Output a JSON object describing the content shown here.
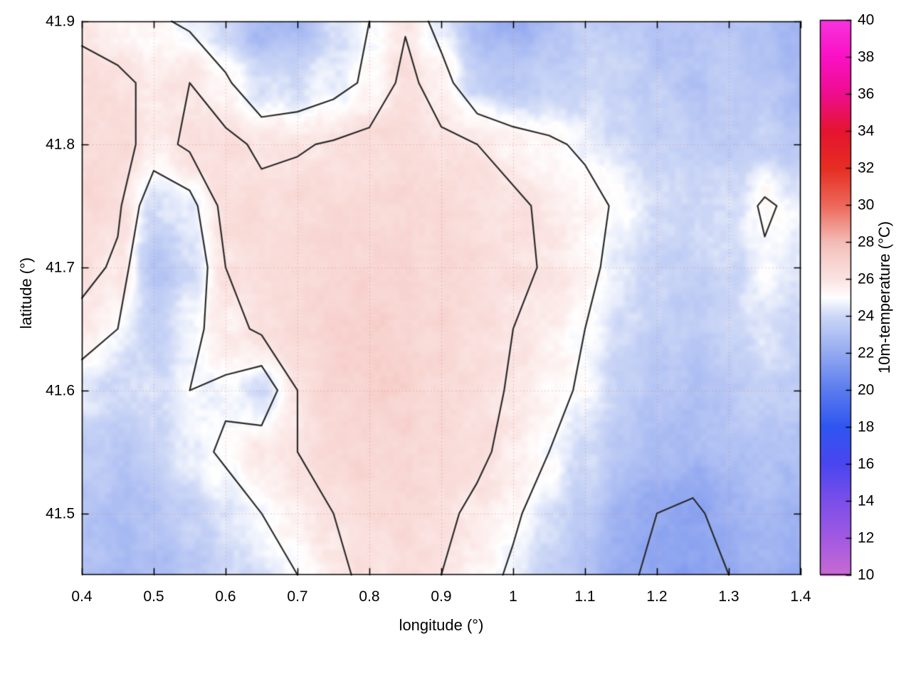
{
  "figure": {
    "background": "#ffffff"
  },
  "chart_data": {
    "type": "heatmap",
    "title": "",
    "xlabel": "longitude (°)",
    "ylabel": "latitude (°)",
    "colorbar_label": "10m-temperature (°C)",
    "x_axis": {
      "min": 0.4,
      "max": 1.4,
      "tick_values": [
        0.4,
        0.5,
        0.6,
        0.7,
        0.8,
        0.9,
        1.0,
        1.1,
        1.2,
        1.3,
        1.4
      ],
      "tick_labels": [
        "0.4",
        "0.5",
        "0.6",
        "0.7",
        "0.8",
        "0.9",
        "1",
        "1.1",
        "1.2",
        "1.3",
        "1.4"
      ]
    },
    "y_axis": {
      "min": 41.45,
      "max": 41.9,
      "tick_values": [
        41.5,
        41.6,
        41.7,
        41.8,
        41.9
      ],
      "tick_labels": [
        "41.5",
        "41.6",
        "41.7",
        "41.8",
        "41.9"
      ]
    },
    "colorbar": {
      "min": 10,
      "max": 40,
      "tick_values": [
        10,
        12,
        14,
        16,
        18,
        20,
        22,
        24,
        26,
        28,
        30,
        32,
        34,
        36,
        38,
        40
      ],
      "tick_labels": [
        "10",
        "12",
        "14",
        "16",
        "18",
        "20",
        "22",
        "24",
        "26",
        "28",
        "30",
        "32",
        "34",
        "36",
        "38",
        "40"
      ],
      "palette_stops": [
        {
          "t": 10,
          "color": "#c86ad2"
        },
        {
          "t": 12,
          "color": "#a259e2"
        },
        {
          "t": 14,
          "color": "#7b4fe9"
        },
        {
          "t": 16,
          "color": "#4a46ef"
        },
        {
          "t": 18,
          "color": "#2f55f0"
        },
        {
          "t": 20,
          "color": "#5b7bee"
        },
        {
          "t": 22,
          "color": "#93a9f0"
        },
        {
          "t": 24,
          "color": "#ccd7f6"
        },
        {
          "t": 25,
          "color": "#ffffff"
        },
        {
          "t": 26,
          "color": "#fae3e1"
        },
        {
          "t": 27,
          "color": "#f7d2ce"
        },
        {
          "t": 28,
          "color": "#f3bcb6"
        },
        {
          "t": 30,
          "color": "#ec685a"
        },
        {
          "t": 32,
          "color": "#e62e22"
        },
        {
          "t": 34,
          "color": "#e5142f"
        },
        {
          "t": 36,
          "color": "#ee0d8e"
        },
        {
          "t": 38,
          "color": "#fa10c4"
        },
        {
          "t": 40,
          "color": "#f733dd"
        }
      ]
    },
    "contour": {
      "levels": [
        22,
        25,
        26
      ],
      "color": "#2b2b2b"
    },
    "grid": {
      "lon_min": 0.4,
      "lon_step": 0.05,
      "lat_max": 41.9,
      "lat_step": 0.05,
      "temps": [
        [
          25.8,
          25.5,
          25.2,
          24.8,
          24.0,
          22.5,
          22.8,
          24.2,
          25.0,
          25.9,
          24.5,
          22.8,
          22.2,
          23.0,
          23.8,
          23.5,
          23.2,
          23.0,
          23.3,
          23.0,
          22.6
        ],
        [
          26.3,
          26.2,
          25.8,
          26.0,
          25.2,
          24.0,
          24.2,
          24.6,
          25.2,
          26.3,
          25.5,
          24.0,
          23.5,
          23.8,
          24.0,
          23.8,
          23.5,
          23.2,
          23.4,
          23.2,
          22.8
        ],
        [
          26.5,
          26.4,
          25.6,
          26.2,
          26.3,
          25.8,
          25.9,
          26.1,
          26.3,
          26.5,
          26.2,
          26.0,
          25.6,
          25.2,
          24.8,
          24.3,
          23.8,
          23.5,
          23.6,
          23.8,
          23.4
        ],
        [
          26.6,
          26.2,
          24.2,
          24.6,
          26.4,
          26.3,
          26.4,
          26.5,
          26.6,
          26.6,
          26.4,
          26.3,
          26.2,
          25.8,
          25.4,
          24.8,
          24.2,
          23.9,
          24.2,
          25.2,
          24.6
        ],
        [
          26.4,
          25.8,
          23.2,
          24.0,
          26.0,
          26.5,
          26.6,
          26.8,
          26.8,
          26.7,
          26.5,
          26.4,
          26.2,
          25.9,
          25.3,
          24.6,
          24.0,
          23.8,
          24.0,
          24.8,
          24.4
        ],
        [
          25.6,
          25.0,
          23.5,
          24.6,
          25.6,
          26.2,
          26.6,
          26.9,
          27.0,
          26.8,
          26.6,
          26.4,
          26.0,
          25.6,
          25.0,
          24.2,
          23.6,
          23.4,
          23.8,
          24.4,
          24.0
        ],
        [
          24.4,
          24.0,
          24.2,
          25.0,
          24.8,
          24.2,
          26.0,
          26.8,
          27.0,
          26.9,
          26.6,
          26.3,
          25.9,
          25.4,
          24.8,
          23.8,
          23.2,
          23.0,
          23.4,
          23.8,
          23.6
        ],
        [
          23.6,
          23.4,
          23.8,
          24.6,
          25.2,
          25.6,
          26.0,
          26.5,
          26.8,
          26.8,
          26.5,
          26.2,
          25.7,
          25.0,
          24.2,
          23.4,
          22.8,
          22.6,
          23.0,
          23.2,
          23.0
        ],
        [
          23.2,
          22.9,
          23.2,
          23.8,
          24.4,
          25.0,
          25.5,
          26.0,
          26.4,
          26.5,
          26.2,
          25.8,
          25.2,
          24.4,
          23.4,
          22.6,
          22.0,
          21.8,
          22.4,
          22.8,
          22.6
        ],
        [
          23.0,
          22.7,
          22.9,
          23.3,
          23.8,
          24.4,
          25.0,
          25.8,
          26.2,
          26.3,
          26.0,
          25.5,
          24.8,
          23.8,
          23.0,
          22.2,
          21.8,
          21.6,
          22.0,
          22.4,
          22.3
        ]
      ]
    }
  }
}
